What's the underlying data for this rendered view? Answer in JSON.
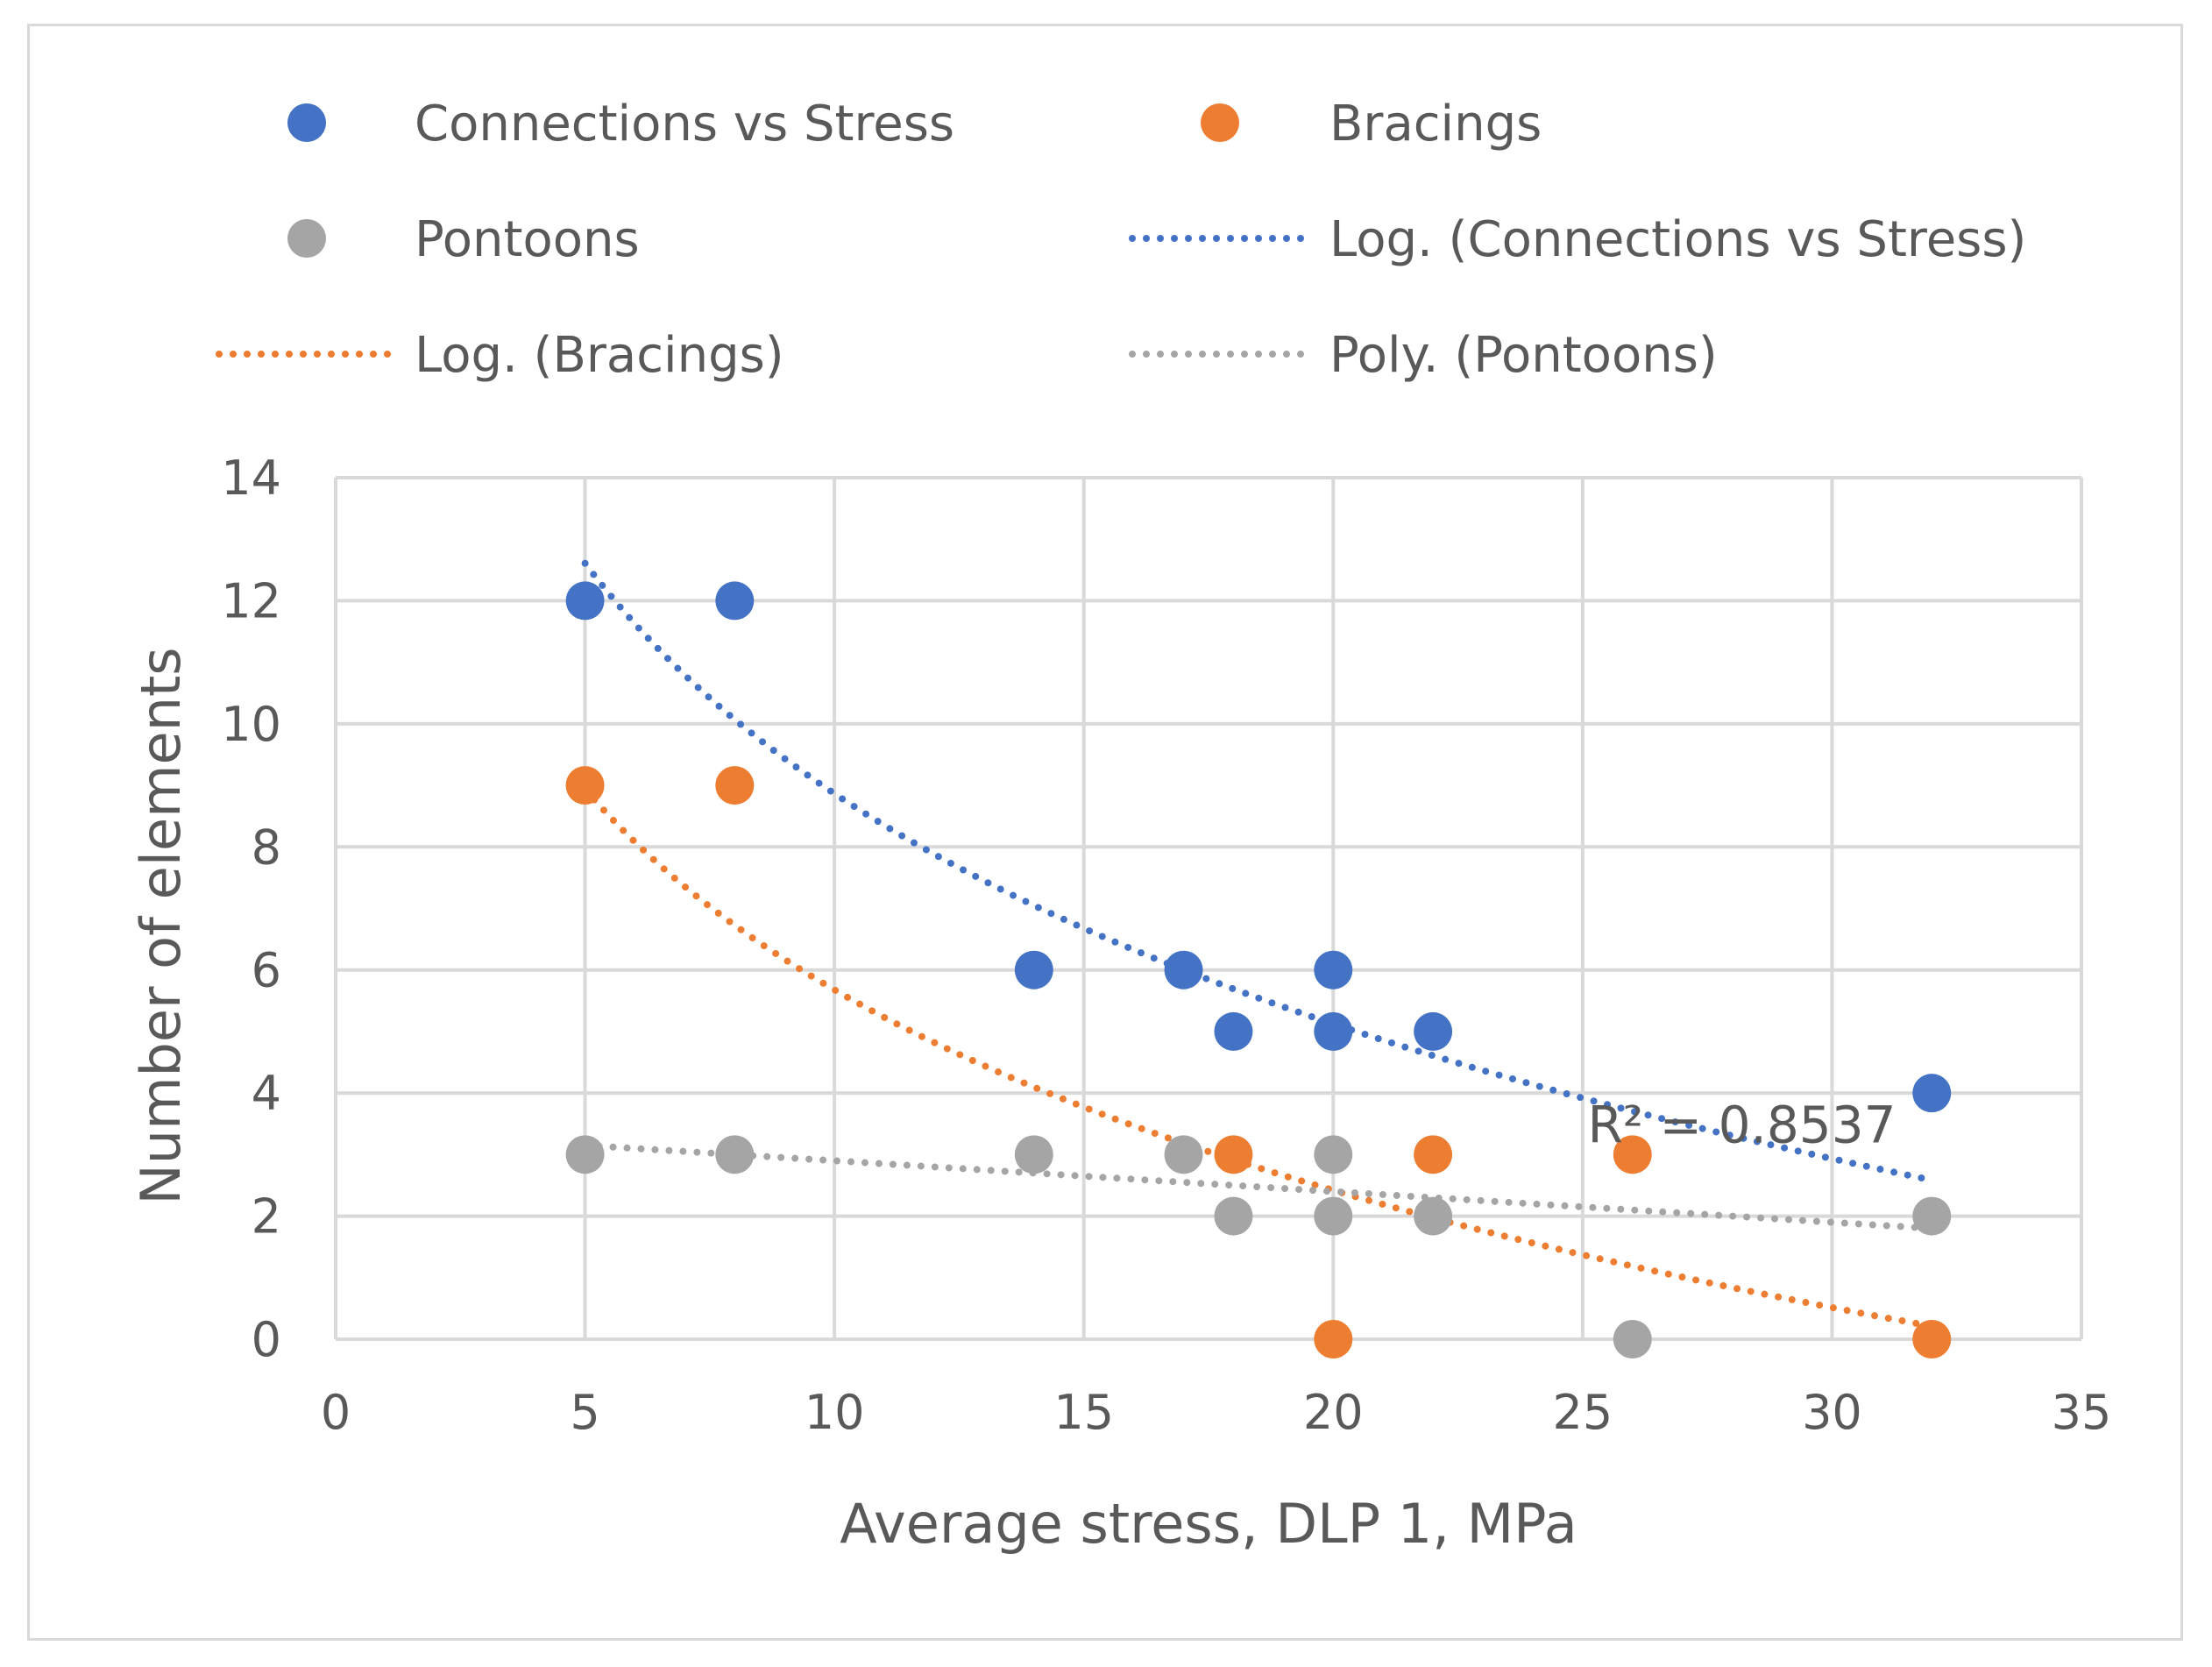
{
  "chart_data": {
    "type": "scatter",
    "title": "",
    "xlabel": "Average stress, DLP 1, MPa",
    "ylabel": "Number of elements",
    "xlim": [
      0,
      35
    ],
    "ylim": [
      0,
      14
    ],
    "xticks": [
      0,
      5,
      10,
      15,
      20,
      25,
      30,
      35
    ],
    "yticks": [
      0,
      2,
      4,
      6,
      8,
      10,
      12,
      14
    ],
    "grid": true,
    "legend_position": "top",
    "series": [
      {
        "name": "Connections vs Stress",
        "color": "#4472c4",
        "points": [
          [
            5,
            12
          ],
          [
            8,
            12
          ],
          [
            14,
            6
          ],
          [
            17,
            6
          ],
          [
            18,
            5
          ],
          [
            20,
            6
          ],
          [
            20,
            5
          ],
          [
            22,
            5
          ],
          [
            32,
            4
          ]
        ]
      },
      {
        "name": "Bracings",
        "color": "#ed7d31",
        "points": [
          [
            5,
            9
          ],
          [
            8,
            9
          ],
          [
            18,
            3
          ],
          [
            20,
            0
          ],
          [
            22,
            3
          ],
          [
            26,
            3
          ],
          [
            32,
            0
          ]
        ]
      },
      {
        "name": "Pontoons",
        "color": "#a5a5a5",
        "points": [
          [
            5,
            3
          ],
          [
            8,
            3
          ],
          [
            14,
            3
          ],
          [
            17,
            3
          ],
          [
            18,
            2
          ],
          [
            20,
            3
          ],
          [
            20,
            2
          ],
          [
            22,
            2
          ],
          [
            26,
            0
          ],
          [
            32,
            2
          ]
        ]
      }
    ],
    "trendlines": [
      {
        "name": "Log. (Connections vs Stress)",
        "color": "#4472c4",
        "kind": "log",
        "a": -5.4,
        "b": 21.3,
        "x_range": [
          5,
          32
        ]
      },
      {
        "name": "Log. (Bracings)",
        "color": "#ed7d31",
        "kind": "log",
        "a": -4.7,
        "b": 16.5,
        "x_range": [
          5,
          32
        ]
      },
      {
        "name": "Poly. (Pontoons)",
        "color": "#a5a5a5",
        "kind": "poly2",
        "c0": 3.4,
        "c1": -0.05,
        "c2": 0.0,
        "x_range": [
          5,
          32
        ]
      }
    ],
    "annotations": [
      {
        "text": "R² = 0.8537",
        "x": 25.1,
        "y": 3.2
      }
    ],
    "legend": [
      {
        "label": "Connections vs Stress",
        "marker": "circle",
        "color": "#4472c4"
      },
      {
        "label": "Bracings",
        "marker": "circle",
        "color": "#ed7d31"
      },
      {
        "label": "Pontoons",
        "marker": "circle",
        "color": "#a5a5a5"
      },
      {
        "label": "Log. (Connections vs Stress)",
        "marker": "dotted-line",
        "color": "#4472c4"
      },
      {
        "label": "Log. (Bracings)",
        "marker": "dotted-line",
        "color": "#ed7d31"
      },
      {
        "label": "Poly. (Pontoons)",
        "marker": "dotted-line",
        "color": "#a5a5a5"
      }
    ]
  }
}
